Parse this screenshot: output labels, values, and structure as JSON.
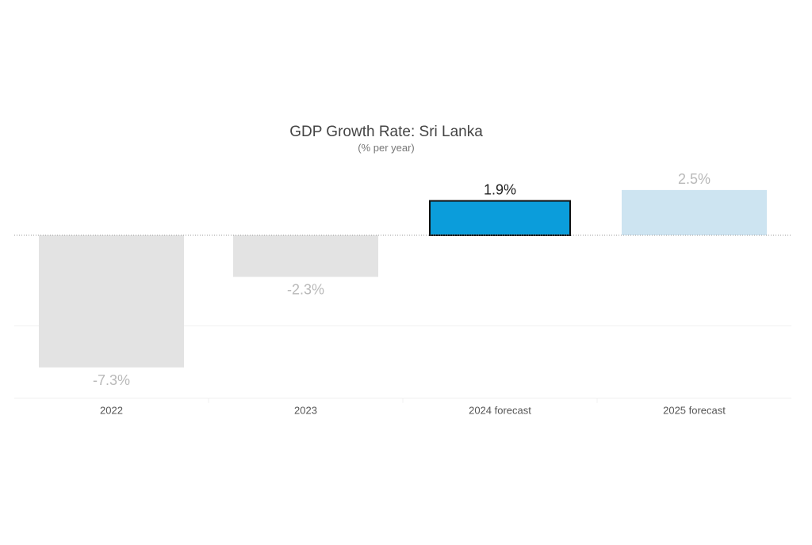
{
  "chart_data": {
    "type": "bar",
    "title": "GDP Growth Rate: Sri Lanka",
    "subtitle": "(% per year)",
    "xlabel": "",
    "ylabel": "",
    "categories": [
      "2022",
      "2023",
      "2024 forecast",
      "2025 forecast"
    ],
    "values": [
      -7.3,
      -2.3,
      1.9,
      2.5
    ],
    "value_labels": [
      "-7.3%",
      "-2.3%",
      "1.9%",
      "2.5%"
    ],
    "highlighted_category": "2024 forecast",
    "ylim": [
      -9,
      2.5
    ],
    "gridlines_at": [
      -5,
      -9
    ],
    "zero_line": "dotted",
    "legend": "none"
  },
  "colors": {
    "past_bar": "#e3e3e3",
    "highlight_bar": "#0b9ddb",
    "highlight_border": "#111111",
    "forecast_bar": "#cde4f1",
    "muted_label": "#b9b9b9",
    "highlight_label": "#222222",
    "title_text": "#444444",
    "subtitle_text": "#777777",
    "tick_text": "#555555",
    "gridline": "#f0f0f0",
    "zero_line": "#9a9a9a"
  }
}
